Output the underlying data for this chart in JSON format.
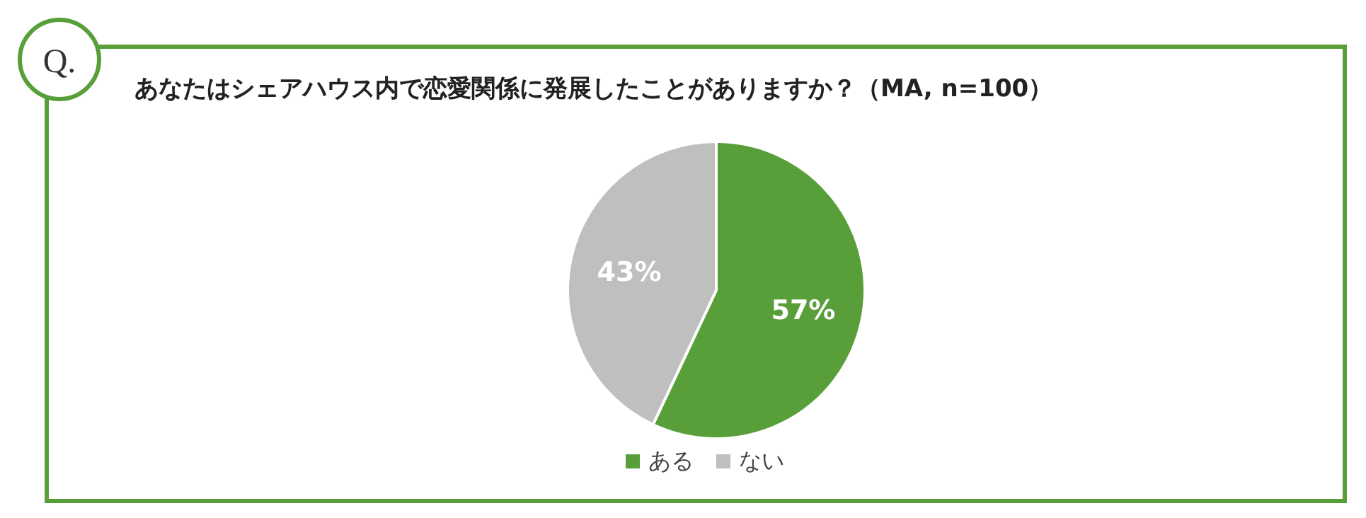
{
  "chart_data": {
    "type": "pie",
    "title": "あなたはシェアハウス内で恋愛関係に発展したことがありますか？（MA, n=100）",
    "annotations": [
      "Q."
    ],
    "categories": [
      "ある",
      "ない"
    ],
    "values": [
      57,
      43
    ],
    "colors": [
      "#589f3a",
      "#bfbfbf"
    ],
    "value_labels": [
      "57%",
      "43%"
    ],
    "legend": "bottom"
  }
}
